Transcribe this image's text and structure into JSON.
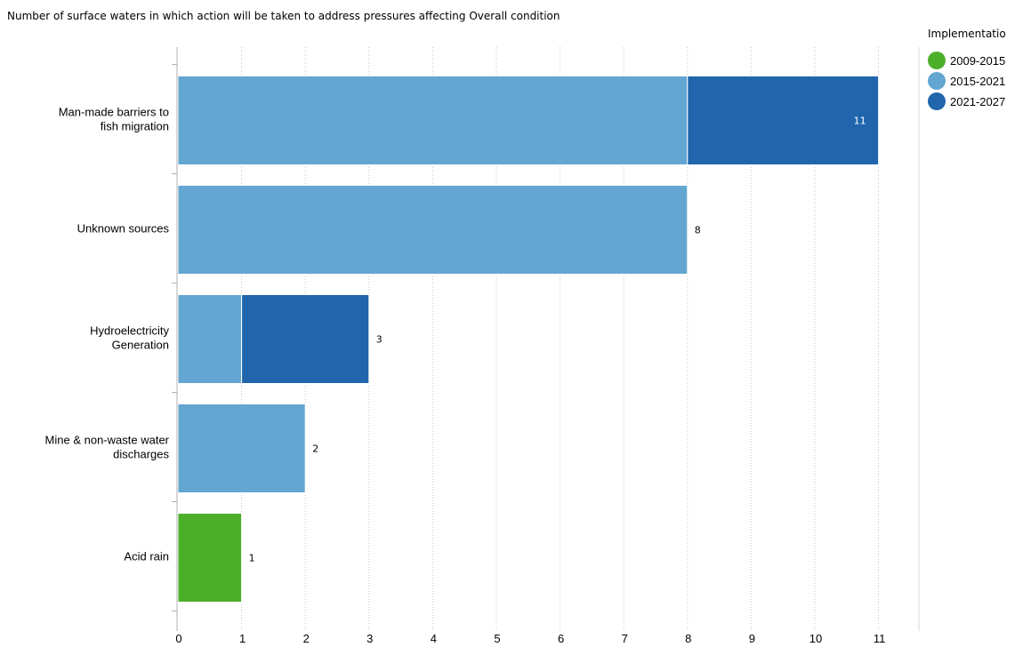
{
  "chart_data": {
    "type": "bar",
    "orientation": "horizontal",
    "stacked": true,
    "title": "Number of surface waters in which action will be taken to address pressures affecting Overall condition",
    "categories": [
      [
        "Man-made barriers to",
        "fish migration"
      ],
      [
        "Unknown sources"
      ],
      [
        "Hydroelectricity",
        "Generation"
      ],
      [
        "Mine & non-waste water",
        "discharges"
      ],
      [
        "Acid rain"
      ]
    ],
    "series": [
      {
        "name": "2009-2015",
        "color": "#4caf2a",
        "values": [
          0,
          0,
          0,
          0,
          1
        ]
      },
      {
        "name": "2015-2021",
        "color": "#63a6d1",
        "values": [
          8,
          8,
          1,
          2,
          0
        ]
      },
      {
        "name": "2021-2027",
        "color": "#2166ac",
        "values": [
          3,
          0,
          2,
          0,
          0
        ]
      }
    ],
    "totals": [
      11,
      8,
      3,
      2,
      1
    ],
    "xlim": [
      0,
      11.7
    ],
    "xticks": [
      0,
      1,
      2,
      3,
      4,
      5,
      6,
      7,
      8,
      9,
      10,
      11
    ],
    "grid": true,
    "legend": {
      "title": "Implementatio",
      "placement": "top-right"
    }
  }
}
